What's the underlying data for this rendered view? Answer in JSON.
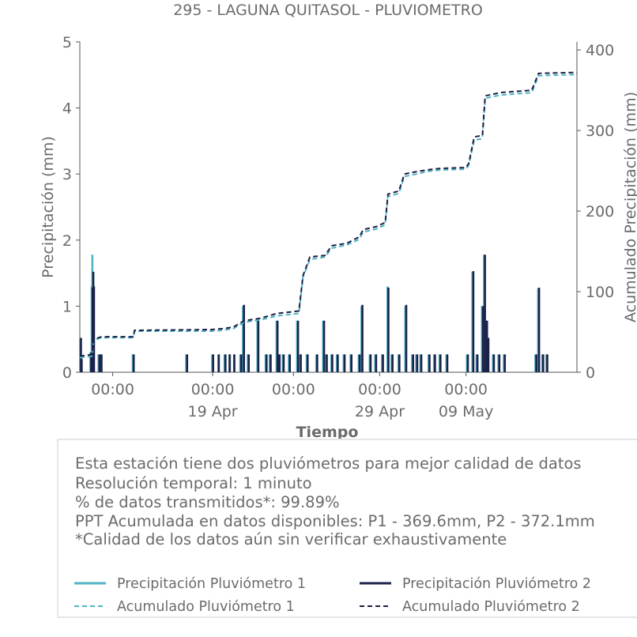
{
  "chart_data": {
    "type": "bar",
    "title": "295 - LAGUNA QUITASOL - PLUVIOMETRO",
    "xlabel": "Tiempo",
    "ylabel": "Precipitación (mm)",
    "y2label": "Acumulado Precipitación (mm)",
    "ylim": [
      0,
      5
    ],
    "y2lim": [
      0,
      410
    ],
    "yticks": [
      0,
      1,
      2,
      3,
      4,
      5
    ],
    "y2ticks": [
      0,
      100,
      200,
      300,
      400
    ],
    "x_range_days": [
      0,
      36.3
    ],
    "x_ticks": [
      {
        "day": 2.4,
        "time": "00:00",
        "date": ""
      },
      {
        "day": 9.7,
        "time": "00:00",
        "date": "19 Apr"
      },
      {
        "day": 15.6,
        "time": "00:00",
        "date": ""
      },
      {
        "day": 21.9,
        "time": "00:00",
        "date": "29 Apr"
      },
      {
        "day": 28.2,
        "time": "00:00",
        "date": "09 May"
      }
    ],
    "grid": false,
    "legend_position": "bottom",
    "series": [
      {
        "name": "Precipitación Pluviómetro 1",
        "axis": "left",
        "style": "bar",
        "color": "#4fb3c4",
        "points": [
          [
            0.05,
            0.5
          ],
          [
            0.1,
            0.2
          ],
          [
            0.8,
            0.3
          ],
          [
            0.9,
            1.3
          ],
          [
            0.95,
            1.78
          ],
          [
            1.0,
            1.5
          ],
          [
            1.4,
            0.27
          ],
          [
            1.55,
            0.27
          ],
          [
            3.9,
            0.27
          ],
          [
            7.8,
            0.27
          ],
          [
            9.7,
            0.27
          ],
          [
            10.2,
            0.27
          ],
          [
            10.6,
            0.27
          ],
          [
            11.0,
            0.27
          ],
          [
            11.3,
            0.27
          ],
          [
            11.75,
            0.27
          ],
          [
            11.95,
            1.0
          ],
          [
            12.3,
            0.27
          ],
          [
            13.0,
            0.78
          ],
          [
            13.6,
            0.27
          ],
          [
            13.9,
            0.27
          ],
          [
            14.4,
            0.78
          ],
          [
            14.55,
            0.27
          ],
          [
            14.85,
            0.27
          ],
          [
            15.3,
            0.27
          ],
          [
            15.9,
            0.78
          ],
          [
            16.1,
            0.27
          ],
          [
            16.6,
            0.27
          ],
          [
            17.3,
            0.27
          ],
          [
            17.8,
            0.78
          ],
          [
            18.0,
            0.27
          ],
          [
            18.4,
            0.27
          ],
          [
            18.8,
            0.27
          ],
          [
            19.3,
            0.27
          ],
          [
            19.8,
            0.27
          ],
          [
            20.4,
            0.27
          ],
          [
            20.6,
            1.0
          ],
          [
            21.2,
            0.27
          ],
          [
            21.6,
            0.27
          ],
          [
            22.1,
            0.27
          ],
          [
            22.5,
            1.3
          ],
          [
            22.8,
            0.27
          ],
          [
            23.3,
            0.27
          ],
          [
            23.8,
            1.0
          ],
          [
            24.3,
            0.27
          ],
          [
            24.6,
            0.27
          ],
          [
            24.9,
            0.27
          ],
          [
            25.5,
            0.27
          ],
          [
            25.9,
            0.27
          ],
          [
            26.3,
            0.27
          ],
          [
            26.8,
            0.27
          ],
          [
            28.3,
            0.27
          ],
          [
            28.7,
            1.52
          ],
          [
            29.0,
            0.27
          ],
          [
            29.4,
            1.0
          ],
          [
            29.55,
            1.78
          ],
          [
            29.7,
            0.78
          ],
          [
            29.8,
            0.5
          ],
          [
            30.2,
            0.27
          ],
          [
            30.6,
            0.27
          ],
          [
            31.0,
            0.27
          ],
          [
            33.3,
            0.27
          ],
          [
            33.5,
            1.27
          ],
          [
            33.8,
            0.27
          ],
          [
            34.1,
            0.27
          ]
        ]
      },
      {
        "name": "Precipitación Pluviómetro 2",
        "axis": "left",
        "style": "bar",
        "color": "#1c2148",
        "points": [
          [
            0.05,
            0.52
          ],
          [
            0.1,
            0.2
          ],
          [
            0.8,
            0.3
          ],
          [
            0.9,
            1.28
          ],
          [
            0.95,
            1.52
          ],
          [
            1.0,
            1.3
          ],
          [
            1.4,
            0.27
          ],
          [
            1.55,
            0.27
          ],
          [
            3.9,
            0.27
          ],
          [
            7.8,
            0.27
          ],
          [
            9.7,
            0.27
          ],
          [
            10.1,
            0.27
          ],
          [
            10.6,
            0.27
          ],
          [
            10.9,
            0.27
          ],
          [
            11.25,
            0.27
          ],
          [
            11.75,
            0.27
          ],
          [
            11.95,
            1.02
          ],
          [
            12.3,
            0.27
          ],
          [
            13.0,
            0.78
          ],
          [
            13.6,
            0.27
          ],
          [
            13.9,
            0.27
          ],
          [
            14.4,
            0.78
          ],
          [
            14.55,
            0.27
          ],
          [
            14.85,
            0.27
          ],
          [
            15.3,
            0.27
          ],
          [
            15.9,
            0.78
          ],
          [
            16.1,
            0.27
          ],
          [
            16.6,
            0.27
          ],
          [
            17.3,
            0.27
          ],
          [
            17.8,
            0.78
          ],
          [
            18.0,
            0.27
          ],
          [
            18.4,
            0.27
          ],
          [
            18.8,
            0.27
          ],
          [
            19.3,
            0.27
          ],
          [
            19.8,
            0.27
          ],
          [
            20.4,
            0.27
          ],
          [
            20.6,
            1.02
          ],
          [
            21.2,
            0.27
          ],
          [
            21.6,
            0.27
          ],
          [
            22.1,
            0.27
          ],
          [
            22.5,
            1.28
          ],
          [
            22.8,
            0.27
          ],
          [
            23.3,
            0.27
          ],
          [
            23.8,
            1.02
          ],
          [
            24.3,
            0.27
          ],
          [
            24.6,
            0.27
          ],
          [
            24.9,
            0.27
          ],
          [
            25.5,
            0.27
          ],
          [
            25.9,
            0.27
          ],
          [
            26.3,
            0.27
          ],
          [
            26.8,
            0.27
          ],
          [
            28.3,
            0.27
          ],
          [
            28.7,
            1.53
          ],
          [
            29.0,
            0.27
          ],
          [
            29.4,
            1.0
          ],
          [
            29.55,
            1.78
          ],
          [
            29.7,
            0.78
          ],
          [
            29.8,
            0.52
          ],
          [
            30.2,
            0.27
          ],
          [
            30.6,
            0.27
          ],
          [
            31.0,
            0.27
          ],
          [
            33.3,
            0.27
          ],
          [
            33.5,
            1.28
          ],
          [
            33.8,
            0.27
          ],
          [
            34.1,
            0.27
          ]
        ]
      },
      {
        "name": "Acumulado Pluviómetro 1",
        "axis": "right",
        "style": "dashed-step",
        "color": "#4fb3c4",
        "points": [
          [
            0.0,
            18
          ],
          [
            0.9,
            20
          ],
          [
            1.0,
            40
          ],
          [
            1.6,
            43
          ],
          [
            3.9,
            43
          ],
          [
            4.0,
            51
          ],
          [
            9.6,
            51
          ],
          [
            10.4,
            52
          ],
          [
            11.2,
            54
          ],
          [
            12.0,
            62
          ],
          [
            13.2,
            65
          ],
          [
            14.4,
            70
          ],
          [
            16.0,
            73
          ],
          [
            16.3,
            118
          ],
          [
            16.8,
            140
          ],
          [
            17.9,
            143
          ],
          [
            18.4,
            154
          ],
          [
            19.5,
            158
          ],
          [
            20.4,
            165
          ],
          [
            20.7,
            174
          ],
          [
            21.7,
            178
          ],
          [
            22.3,
            183
          ],
          [
            22.5,
            218
          ],
          [
            23.3,
            222
          ],
          [
            23.7,
            243
          ],
          [
            24.6,
            246
          ],
          [
            25.3,
            249
          ],
          [
            26.3,
            251
          ],
          [
            28.2,
            252
          ],
          [
            28.4,
            257
          ],
          [
            28.8,
            288
          ],
          [
            29.4,
            290
          ],
          [
            29.6,
            340
          ],
          [
            30.7,
            344
          ],
          [
            33.0,
            347
          ],
          [
            33.5,
            368
          ],
          [
            36.3,
            369.6
          ]
        ]
      },
      {
        "name": "Acumulado Pluviómetro 2",
        "axis": "right",
        "style": "dashed-step",
        "color": "#1c2148",
        "points": [
          [
            0.0,
            20
          ],
          [
            0.9,
            22
          ],
          [
            1.0,
            41
          ],
          [
            1.6,
            44
          ],
          [
            3.9,
            44
          ],
          [
            4.0,
            52
          ],
          [
            9.6,
            53
          ],
          [
            10.4,
            54
          ],
          [
            11.2,
            56
          ],
          [
            12.0,
            64
          ],
          [
            13.2,
            67
          ],
          [
            14.4,
            73
          ],
          [
            16.0,
            76
          ],
          [
            16.3,
            120
          ],
          [
            16.8,
            143
          ],
          [
            17.9,
            145
          ],
          [
            18.4,
            157
          ],
          [
            19.5,
            160
          ],
          [
            20.4,
            168
          ],
          [
            20.7,
            177
          ],
          [
            21.7,
            181
          ],
          [
            22.3,
            186
          ],
          [
            22.5,
            221
          ],
          [
            23.3,
            225
          ],
          [
            23.7,
            246
          ],
          [
            24.6,
            249
          ],
          [
            25.3,
            251
          ],
          [
            26.3,
            253
          ],
          [
            28.2,
            254
          ],
          [
            28.4,
            259
          ],
          [
            28.8,
            292
          ],
          [
            29.4,
            294
          ],
          [
            29.6,
            343
          ],
          [
            30.7,
            347
          ],
          [
            33.0,
            350
          ],
          [
            33.5,
            371
          ],
          [
            36.3,
            372.1
          ]
        ]
      }
    ]
  },
  "info": {
    "lines": [
      "Esta estación tiene dos pluviómetros para mejor calidad de datos",
      "Resolución temporal: 1 minuto",
      "% de datos transmitidos*: 99.89%",
      "PPT Acumulada en datos disponibles: P1 - 369.6mm, P2 - 372.1mm",
      "*Calidad de los datos aún sin verificar exhaustivamente"
    ]
  },
  "legend": {
    "items": [
      {
        "label": "Precipitación Pluviómetro 1",
        "color": "#4fb3c4",
        "style": "solid"
      },
      {
        "label": "Precipitación Pluviómetro 2",
        "color": "#1c2148",
        "style": "solid"
      },
      {
        "label": "Acumulado Pluviómetro 1",
        "color": "#4fb3c4",
        "style": "dashed"
      },
      {
        "label": "Acumulado Pluviómetro 2",
        "color": "#1c2148",
        "style": "dashed"
      }
    ]
  }
}
